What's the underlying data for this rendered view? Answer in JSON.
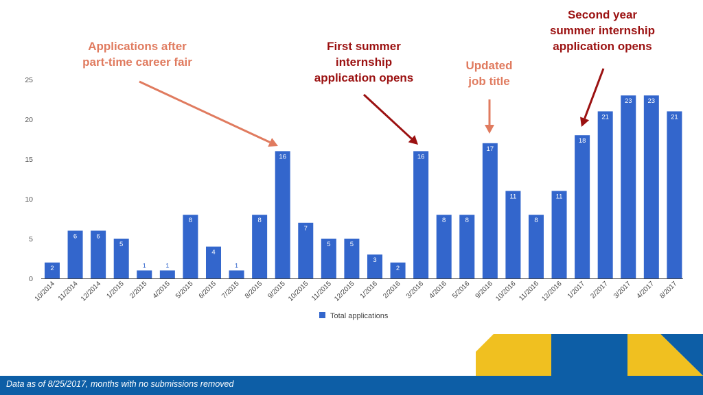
{
  "chart_data": {
    "type": "bar",
    "categories": [
      "10/2014",
      "11/2014",
      "12/2014",
      "1/2015",
      "2/2015",
      "4/2015",
      "5/2015",
      "6/2015",
      "7/2015",
      "8/2015",
      "9/2015",
      "10/2015",
      "11/2015",
      "12/2015",
      "1/2016",
      "2/2016",
      "3/2016",
      "4/2016",
      "5/2016",
      "9/2016",
      "10/2016",
      "11/2016",
      "12/2016",
      "1/2017",
      "2/2017",
      "3/2017",
      "4/2017",
      "8/2017"
    ],
    "series": [
      {
        "name": "Total applications",
        "values": [
          2,
          6,
          6,
          5,
          1,
          1,
          8,
          4,
          1,
          8,
          16,
          7,
          5,
          5,
          3,
          2,
          16,
          8,
          8,
          17,
          11,
          8,
          11,
          18,
          21,
          23,
          23,
          21
        ]
      }
    ],
    "yticks": [
      "0",
      "5",
      "10",
      "15",
      "20",
      "25"
    ],
    "ylim": [
      0,
      25
    ],
    "grid": false,
    "legend": "bottom",
    "title": "",
    "xlabel": "",
    "ylabel": "",
    "bar_color": "#3366cc"
  },
  "annotations": [
    {
      "text": "Applications after\npart-time career fair",
      "color": "#e07b5f",
      "target_category": "9/2015"
    },
    {
      "text": "First summer\ninternship\napplication opens",
      "color": "#9b1111",
      "target_category": "3/2016"
    },
    {
      "text": "Updated\njob title",
      "color": "#e07b5f",
      "target_category": "9/2016"
    },
    {
      "text": "Second year\nsummer internship\napplication opens",
      "color": "#9b1111",
      "target_category": "1/2017"
    }
  ],
  "footer": {
    "note": "Data as of 8/25/2017, months with no submissions removed"
  },
  "colors": {
    "footer_blue": "#0d5ea6",
    "accent_yellow": "#f0c020"
  }
}
